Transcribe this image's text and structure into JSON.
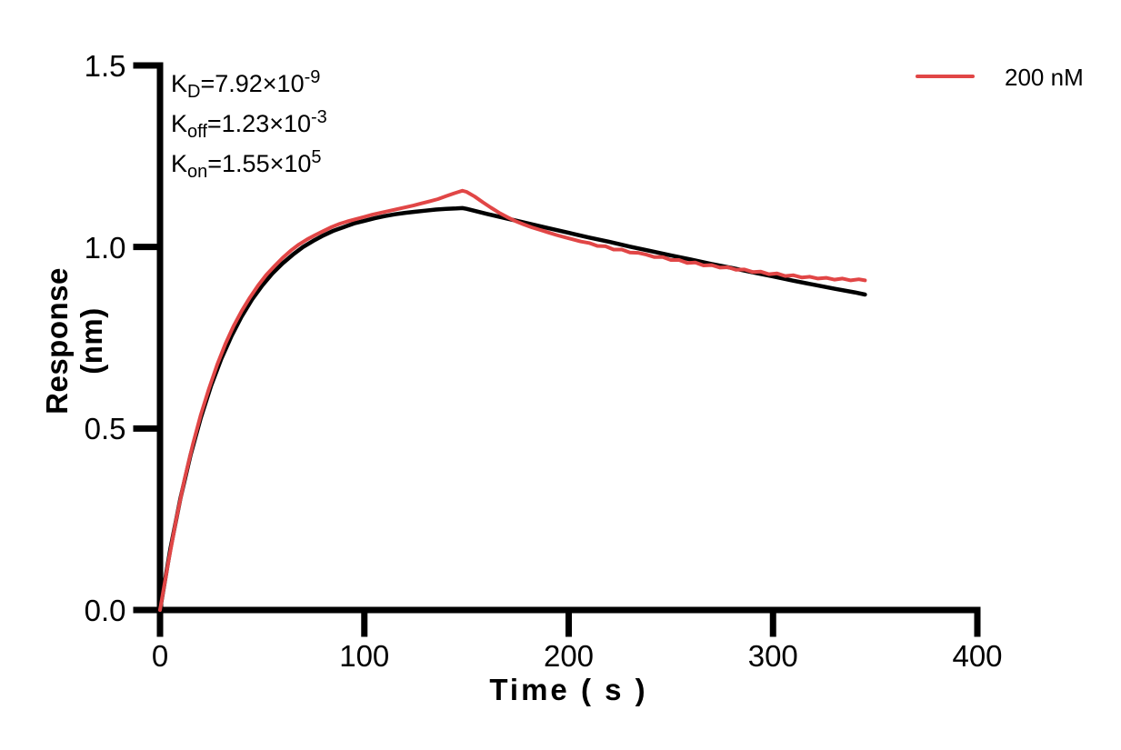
{
  "annotation": {
    "lines": [
      {
        "base": "K",
        "sub": "D",
        "mid": "=7.92×10",
        "sup": "-9"
      },
      {
        "base": "K",
        "sub": "off",
        "mid": "=1.23×10",
        "sup": "-3"
      },
      {
        "base": "K",
        "sub": "on",
        "mid": "=1.55×10",
        "sup": "5"
      }
    ]
  },
  "legend": {
    "position": "top-right",
    "items": [
      {
        "label": "200 nM",
        "color": "#E14646"
      }
    ]
  },
  "chart_data": {
    "type": "line",
    "title": "",
    "xlabel": "Time ( s )",
    "ylabel": "Response (nm)",
    "xlim": [
      0,
      400
    ],
    "ylim": [
      0,
      1.5
    ],
    "xticks": [
      0,
      100,
      200,
      300,
      400
    ],
    "yticks": [
      "0.0",
      "0.5",
      "1.0",
      "1.5"
    ],
    "grid": false,
    "axis_color": "#000000",
    "annotations_semantics": "Binding kinetics constants shown top-left; red = measured 200 nM sensorgram, black = fitted curve",
    "series": [
      {
        "name": "fit",
        "color": "#000000",
        "width": 4.5,
        "points": [
          [
            0,
            0
          ],
          [
            5,
            0.166
          ],
          [
            10,
            0.308
          ],
          [
            15,
            0.428
          ],
          [
            20,
            0.53
          ],
          [
            25,
            0.618
          ],
          [
            30,
            0.692
          ],
          [
            35,
            0.755
          ],
          [
            40,
            0.809
          ],
          [
            45,
            0.855
          ],
          [
            50,
            0.894
          ],
          [
            55,
            0.927
          ],
          [
            60,
            0.955
          ],
          [
            65,
            0.979
          ],
          [
            70,
            1.0
          ],
          [
            75,
            1.017
          ],
          [
            80,
            1.032
          ],
          [
            85,
            1.045
          ],
          [
            90,
            1.055
          ],
          [
            95,
            1.065
          ],
          [
            100,
            1.072
          ],
          [
            105,
            1.079
          ],
          [
            110,
            1.085
          ],
          [
            115,
            1.09
          ],
          [
            120,
            1.094
          ],
          [
            125,
            1.097
          ],
          [
            130,
            1.1
          ],
          [
            135,
            1.103
          ],
          [
            140,
            1.105
          ],
          [
            145,
            1.106
          ],
          [
            148,
            1.107
          ],
          [
            150,
            1.105
          ],
          [
            160,
            1.091
          ],
          [
            170,
            1.078
          ],
          [
            180,
            1.065
          ],
          [
            190,
            1.052
          ],
          [
            200,
            1.039
          ],
          [
            210,
            1.026
          ],
          [
            220,
            1.014
          ],
          [
            230,
            1.001
          ],
          [
            240,
            0.989
          ],
          [
            250,
            0.977
          ],
          [
            260,
            0.965
          ],
          [
            270,
            0.953
          ],
          [
            280,
            0.942
          ],
          [
            290,
            0.93
          ],
          [
            300,
            0.919
          ],
          [
            310,
            0.907
          ],
          [
            320,
            0.896
          ],
          [
            330,
            0.885
          ],
          [
            340,
            0.875
          ],
          [
            345,
            0.869
          ]
        ]
      },
      {
        "name": "200 nM",
        "color": "#E14646",
        "width": 4,
        "points": [
          [
            0,
            0.0
          ],
          [
            4,
            0.13
          ],
          [
            8,
            0.252
          ],
          [
            12,
            0.36
          ],
          [
            16,
            0.455
          ],
          [
            20,
            0.538
          ],
          [
            24,
            0.61
          ],
          [
            28,
            0.676
          ],
          [
            32,
            0.733
          ],
          [
            36,
            0.782
          ],
          [
            40,
            0.824
          ],
          [
            44,
            0.861
          ],
          [
            48,
            0.894
          ],
          [
            52,
            0.923
          ],
          [
            56,
            0.947
          ],
          [
            60,
            0.97
          ],
          [
            64,
            0.99
          ],
          [
            68,
            1.007
          ],
          [
            72,
            1.021
          ],
          [
            76,
            1.033
          ],
          [
            80,
            1.044
          ],
          [
            84,
            1.055
          ],
          [
            88,
            1.064
          ],
          [
            92,
            1.071
          ],
          [
            96,
            1.077
          ],
          [
            100,
            1.083
          ],
          [
            104,
            1.089
          ],
          [
            108,
            1.094
          ],
          [
            112,
            1.099
          ],
          [
            116,
            1.104
          ],
          [
            120,
            1.109
          ],
          [
            124,
            1.114
          ],
          [
            128,
            1.12
          ],
          [
            132,
            1.126
          ],
          [
            136,
            1.132
          ],
          [
            140,
            1.14
          ],
          [
            144,
            1.148
          ],
          [
            148,
            1.155
          ],
          [
            150,
            1.152
          ],
          [
            154,
            1.139
          ],
          [
            158,
            1.123
          ],
          [
            162,
            1.108
          ],
          [
            166,
            1.094
          ],
          [
            170,
            1.082
          ],
          [
            174,
            1.071
          ],
          [
            178,
            1.062
          ],
          [
            182,
            1.054
          ],
          [
            186,
            1.047
          ],
          [
            190,
            1.04
          ],
          [
            194,
            1.033
          ],
          [
            198,
            1.027
          ],
          [
            202,
            1.021
          ],
          [
            206,
            1.015
          ],
          [
            210,
            1.011
          ],
          [
            214,
            1.003
          ],
          [
            218,
            1.002
          ],
          [
            222,
            0.993
          ],
          [
            226,
            0.993
          ],
          [
            230,
            0.985
          ],
          [
            234,
            0.984
          ],
          [
            238,
            0.979
          ],
          [
            242,
            0.972
          ],
          [
            246,
            0.972
          ],
          [
            250,
            0.964
          ],
          [
            254,
            0.964
          ],
          [
            258,
            0.956
          ],
          [
            262,
            0.957
          ],
          [
            266,
            0.949
          ],
          [
            270,
            0.95
          ],
          [
            274,
            0.943
          ],
          [
            278,
            0.944
          ],
          [
            282,
            0.937
          ],
          [
            286,
            0.938
          ],
          [
            290,
            0.931
          ],
          [
            294,
            0.932
          ],
          [
            298,
            0.925
          ],
          [
            302,
            0.927
          ],
          [
            306,
            0.92
          ],
          [
            310,
            0.922
          ],
          [
            314,
            0.916
          ],
          [
            318,
            0.918
          ],
          [
            322,
            0.913
          ],
          [
            326,
            0.915
          ],
          [
            330,
            0.91
          ],
          [
            334,
            0.913
          ],
          [
            338,
            0.908
          ],
          [
            342,
            0.911
          ],
          [
            345,
            0.908
          ]
        ]
      }
    ]
  }
}
